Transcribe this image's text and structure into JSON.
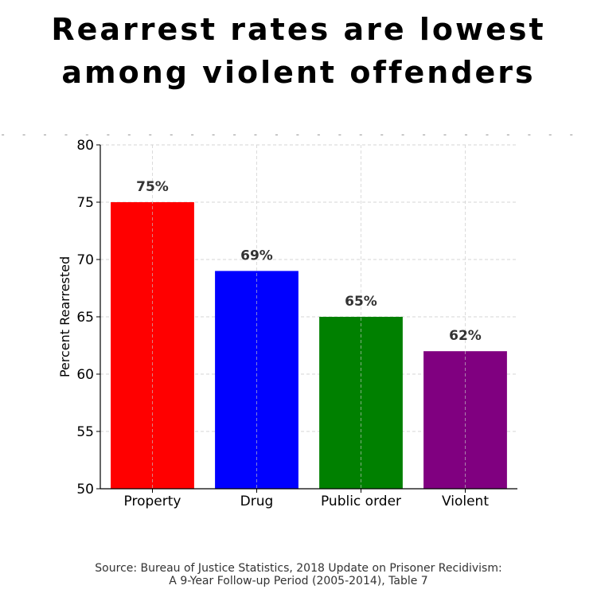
{
  "title": {
    "line1": "Rearrest rates are lowest",
    "line2": "among violent offenders"
  },
  "source": {
    "line1": "Source: Bureau of Justice Statistics, 2018 Update on Prisoner Recidivism:",
    "line2": "A 9-Year Follow-up Period (2005-2014), Table 7"
  },
  "chart_data": {
    "type": "bar",
    "categories": [
      "Property",
      "Drug",
      "Public order",
      "Violent"
    ],
    "values": [
      75,
      69,
      65,
      62
    ],
    "value_labels": [
      "75%",
      "69%",
      "65%",
      "62%"
    ],
    "colors": [
      "#ff0000",
      "#0000ff",
      "#008000",
      "#800080"
    ],
    "title": "",
    "xlabel": "",
    "ylabel": "Percent Rearrested",
    "ylim": [
      50,
      80
    ],
    "yticks": [
      50,
      55,
      60,
      65,
      70,
      75,
      80
    ],
    "grid": true
  }
}
